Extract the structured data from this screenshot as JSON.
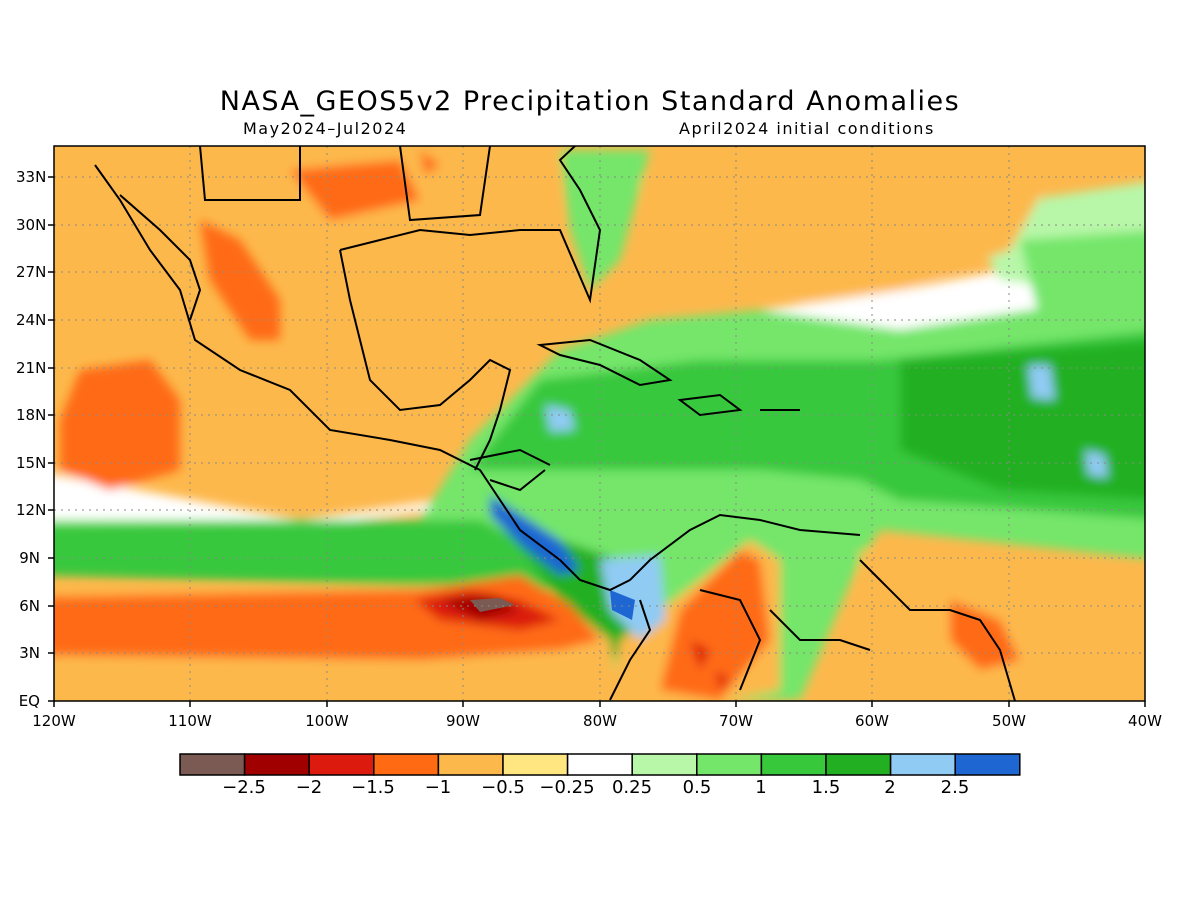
{
  "title": "NASA_GEOS5v2 Precipitation Standard Anomalies",
  "subtitle_left": "May2024–Jul2024",
  "subtitle_right": "April2024 initial conditions",
  "map": {
    "extent": {
      "lon": [
        -120,
        -40
      ],
      "lat": [
        0,
        35
      ]
    },
    "lat_labels": [
      "33N",
      "30N",
      "27N",
      "24N",
      "21N",
      "18N",
      "15N",
      "12N",
      "9N",
      "6N",
      "3N",
      "EQ"
    ],
    "lon_labels": [
      "120W",
      "110W",
      "100W",
      "90W",
      "80W",
      "70W",
      "60W",
      "50W",
      "40W"
    ],
    "gridlines": "dotted"
  },
  "colorbar": {
    "colors": [
      "#7a5a52",
      "#a00000",
      "#dc1a0e",
      "#ff6a12",
      "#fdb84c",
      "#ffe680",
      "#ffffff",
      "#b8f7a8",
      "#74e66a",
      "#38c83c",
      "#22b022",
      "#90cbf4",
      "#1e66d2"
    ],
    "labels": [
      "−2.5",
      "−2",
      "−1.5",
      "−1",
      "−0.5",
      "−0.25",
      "0.25",
      "0.5",
      "1",
      "1.5",
      "2",
      "2.5"
    ]
  }
}
